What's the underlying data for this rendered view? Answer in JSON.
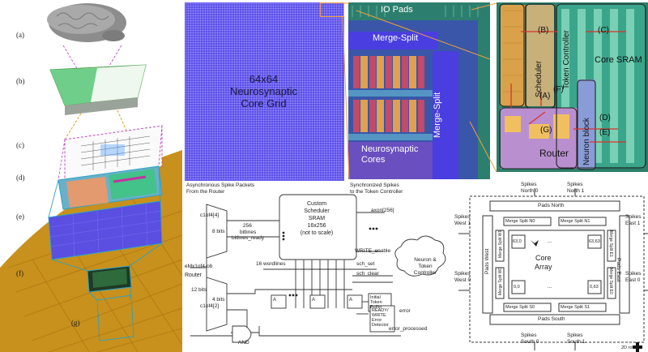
{
  "stack_labels": [
    "(a)",
    "(b)",
    "(c)",
    "(d)",
    "(e)",
    "(f)",
    "(g)"
  ],
  "core_grid": {
    "line1": "64x64",
    "line2": "Neurosynaptic",
    "line3": "Core Grid"
  },
  "core_grid_caption": {
    "line1": "Asynchronous Spike Packets",
    "line2": "From the Router"
  },
  "zoom": {
    "io_pads": "IO Pads",
    "merge_split_top": "Merge-Split",
    "merge_split_side": "Merge-Split",
    "cores_line1": "Neurosynaptic",
    "cores_line2": "Cores"
  },
  "zoom_caption": {
    "line1": "Synchronized Spikes",
    "line2": "to the Token Controller"
  },
  "layout": {
    "scheduler": "Scheduler",
    "token_controller": "Token Controller",
    "core_sram": "Core SRAM",
    "router": "Router",
    "neuron_block": "Neuron block",
    "markers": [
      "(A)",
      "(B)",
      "(C)",
      "(D)",
      "(E)",
      "(F)",
      "(G)"
    ]
  },
  "schematic": {
    "sram_line1": "Custom",
    "sram_line2": "Scheduler",
    "sram_line3": "SRAM",
    "sram_line4": "16x256",
    "sram_line5": "(not to scale)",
    "axon": "axon[256]",
    "write_enable": "WRITE_enable",
    "bitlines_ready": "bitlines_ready",
    "bitlines_count": "256",
    "bitlines_word": "bitlines",
    "wordlines": "16 wordlines",
    "sch_set": "sch_set",
    "sch_clear": "sch_clear",
    "neuron_token_line1": "Neuron &",
    "neuron_token_line2": "Token",
    "neuron_token_line3": "Controller",
    "router": "Router",
    "bits12": "12 bits",
    "bits8": "8 bits",
    "bits4": "4 bits",
    "mux_top": "c1of4[4]",
    "mux_bottom": "c1of4[2]",
    "demux_in": "eMx1of4-ob",
    "and": "AND",
    "initial_token_line1": "Initial",
    "initial_token_line2": "Token",
    "initial_token_line3": "Buffer",
    "ready_line1": "READY/",
    "ready_line2": "WRITE",
    "ready_line3": "Error",
    "ready_line4": "Detector",
    "error": "error",
    "error_processed": "error_processed",
    "col_labels": [
      "WRITE",
      "READ",
      "CLEAR"
    ],
    "latch_label": "A",
    "latch_sub": "C-block"
  },
  "array": {
    "spikes": "Spikes",
    "north0": "North 0",
    "north1": "North 1",
    "south0": "South 0",
    "south1": "South 1",
    "west0": "West 0",
    "west1": "West 1",
    "east0": "East 0",
    "east1": "East 1",
    "pads_north": "Pads North",
    "pads_south": "Pads South",
    "pads_west": "Pads West",
    "pads_east": "Pads East",
    "ms_n0": "Merge Split N0",
    "ms_n1": "Merge Split N1",
    "ms_s0": "Merge Split S0",
    "ms_s1": "Merge Split S1",
    "ms_w0": "Merge Split W0",
    "ms_w1": "Merge Split W1",
    "ms_e0": "Merge Split E0",
    "ms_e1": "Merge Split E1",
    "core_line1": "Core",
    "core_line2": "Array",
    "c_tl": "63,0",
    "c_tr": "63,63",
    "c_bl": "0,0",
    "c_br": "0,63",
    "dots": "...",
    "legend": "2D router"
  }
}
